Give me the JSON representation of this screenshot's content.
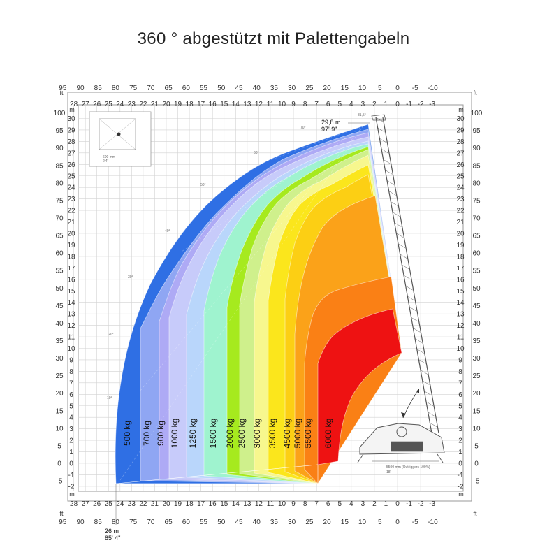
{
  "title": "360 ° abgestützt mit Palettengabeln",
  "axes": {
    "top_ft": [
      "95",
      "90",
      "85",
      "80",
      "75",
      "70",
      "65",
      "60",
      "55",
      "50",
      "45",
      "40",
      "35",
      "30",
      "25",
      "20",
      "15",
      "10",
      "5",
      "0",
      "-5",
      "-10"
    ],
    "top_m": [
      "28",
      "27",
      "26",
      "25",
      "24",
      "23",
      "22",
      "21",
      "20",
      "19",
      "18",
      "17",
      "16",
      "15",
      "14",
      "13",
      "12",
      "11",
      "10",
      "9",
      "8",
      "7",
      "6",
      "5",
      "4",
      "3",
      "2",
      "1",
      "0",
      "-1",
      "-2",
      "-3"
    ],
    "left_m": [
      "30",
      "29",
      "28",
      "27",
      "26",
      "25",
      "24",
      "23",
      "22",
      "21",
      "20",
      "19",
      "18",
      "17",
      "16",
      "15",
      "14",
      "13",
      "12",
      "11",
      "10",
      "9",
      "8",
      "7",
      "6",
      "5",
      "4",
      "3",
      "2",
      "1",
      "0",
      "-1",
      "-2"
    ],
    "left_ft": [
      "100",
      "95",
      "90",
      "85",
      "80",
      "75",
      "70",
      "65",
      "60",
      "55",
      "50",
      "45",
      "40",
      "35",
      "30",
      "25",
      "20",
      "15",
      "10",
      "5",
      "0",
      "-5"
    ],
    "unit_m": "m",
    "unit_ft": "ft"
  },
  "zones": [
    {
      "label": "500 kg",
      "color": "#2f6fe4"
    },
    {
      "label": "700 kg",
      "color": "#8fa6f3"
    },
    {
      "label": "900 kg",
      "color": "#aeaaf5"
    },
    {
      "label": "1000 kg",
      "color": "#c7cbfa"
    },
    {
      "label": "1250 kg",
      "color": "#b9d6fb"
    },
    {
      "label": "1500 kg",
      "color": "#9ff3cf"
    },
    {
      "label": "2000 kg",
      "color": "#a6ea1e"
    },
    {
      "label": "2500 kg",
      "color": "#cff08c"
    },
    {
      "label": "3000 kg",
      "color": "#f7f78e"
    },
    {
      "label": "3500 kg",
      "color": "#fbe61c"
    },
    {
      "label": "4500 kg",
      "color": "#fccf14"
    },
    {
      "label": "5000 kg",
      "color": "#fba219"
    },
    {
      "label": "5500 kg",
      "color": "#fa8015"
    },
    {
      "label": "6000 kg",
      "color": "#ee1212"
    }
  ],
  "annotations": {
    "max_height_m": "29,8 m",
    "max_height_ft": "97' 9\"",
    "max_reach_m": "26 m",
    "max_reach_ft": "85' 4\"",
    "boom_angle": "81,5°",
    "angles": [
      "70°",
      "60°",
      "50°",
      "40°",
      "30°",
      "20°",
      "10°"
    ],
    "outrigger_mm": "5500 mm [Outriggers 100%]",
    "outrigger_ft": "18'",
    "inset_mm": "600 mm",
    "inset_ft": "2'4\""
  },
  "colors": {
    "grid": "#cfcfcf",
    "axis": "#888888",
    "text": "#222222",
    "machine": "#555555"
  }
}
